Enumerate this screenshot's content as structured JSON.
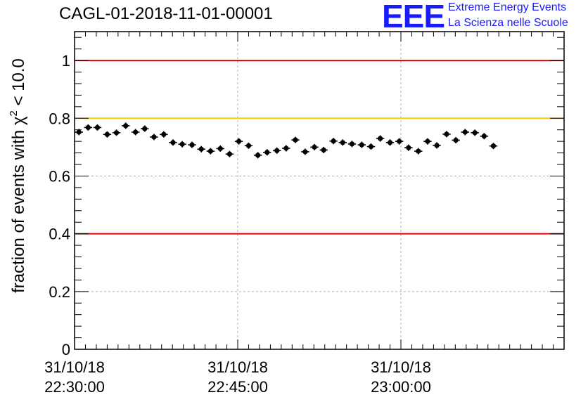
{
  "title": "CAGL-01-2018-11-01-00001",
  "logo": {
    "mark": "EEE",
    "line1": "Extreme Energy Events",
    "line2": "La Scienza nelle Scuole",
    "color": "#1a1aff"
  },
  "chart_data": {
    "type": "scatter",
    "title": "CAGL-01-2018-11-01-00001",
    "ylabel": "fraction of events with χ² < 10.0",
    "ylabel_parts": {
      "prefix": "fraction of events with ",
      "symbol": "χ",
      "superscript": "2",
      "suffix": " < 10.0"
    },
    "xlabel": "",
    "ylim": [
      0,
      1.1
    ],
    "xlim_minutes": [
      0,
      45
    ],
    "x_axis_start": "31/10/18 22:30:00",
    "x_ticks": [
      {
        "minute": 0,
        "date": "31/10/18",
        "time": "22:30:00"
      },
      {
        "minute": 15,
        "date": "31/10/18",
        "time": "22:45:00"
      },
      {
        "minute": 30,
        "date": "31/10/18",
        "time": "23:00:00"
      }
    ],
    "y_ticks": [
      {
        "value": 0,
        "label": "0"
      },
      {
        "value": 0.2,
        "label": "0.2"
      },
      {
        "value": 0.4,
        "label": "0.4"
      },
      {
        "value": 0.6,
        "label": "0.6"
      },
      {
        "value": 0.8,
        "label": "0.8"
      },
      {
        "value": 1,
        "label": "1"
      }
    ],
    "grid": true,
    "reference_lines": [
      {
        "y": 1.0,
        "color": "#e00000"
      },
      {
        "y": 0.8,
        "color": "#ffc800"
      },
      {
        "y": 0.4,
        "color": "#e00000"
      }
    ],
    "x_half_width_minutes": 0.37,
    "y_error": 0.011,
    "series": [
      {
        "marker_color": "#000000",
        "points": [
          {
            "x": 0.4,
            "y": 0.752
          },
          {
            "x": 1.25,
            "y": 0.768
          },
          {
            "x": 2.1,
            "y": 0.768
          },
          {
            "x": 3.0,
            "y": 0.744
          },
          {
            "x": 3.85,
            "y": 0.75
          },
          {
            "x": 4.7,
            "y": 0.774
          },
          {
            "x": 5.6,
            "y": 0.752
          },
          {
            "x": 6.45,
            "y": 0.764
          },
          {
            "x": 7.3,
            "y": 0.735
          },
          {
            "x": 8.2,
            "y": 0.744
          },
          {
            "x": 9.05,
            "y": 0.716
          },
          {
            "x": 9.9,
            "y": 0.71
          },
          {
            "x": 10.8,
            "y": 0.708
          },
          {
            "x": 11.65,
            "y": 0.693
          },
          {
            "x": 12.5,
            "y": 0.686
          },
          {
            "x": 13.4,
            "y": 0.695
          },
          {
            "x": 14.25,
            "y": 0.676
          },
          {
            "x": 15.1,
            "y": 0.72
          },
          {
            "x": 16.0,
            "y": 0.705
          },
          {
            "x": 16.85,
            "y": 0.672
          },
          {
            "x": 17.7,
            "y": 0.682
          },
          {
            "x": 18.6,
            "y": 0.688
          },
          {
            "x": 19.45,
            "y": 0.696
          },
          {
            "x": 20.3,
            "y": 0.725
          },
          {
            "x": 21.2,
            "y": 0.684
          },
          {
            "x": 22.05,
            "y": 0.7
          },
          {
            "x": 22.9,
            "y": 0.69
          },
          {
            "x": 23.8,
            "y": 0.721
          },
          {
            "x": 24.65,
            "y": 0.716
          },
          {
            "x": 25.5,
            "y": 0.711
          },
          {
            "x": 26.4,
            "y": 0.708
          },
          {
            "x": 27.25,
            "y": 0.702
          },
          {
            "x": 28.1,
            "y": 0.73
          },
          {
            "x": 29.0,
            "y": 0.716
          },
          {
            "x": 29.85,
            "y": 0.72
          },
          {
            "x": 30.7,
            "y": 0.698
          },
          {
            "x": 31.6,
            "y": 0.686
          },
          {
            "x": 32.45,
            "y": 0.72
          },
          {
            "x": 33.3,
            "y": 0.706
          },
          {
            "x": 34.2,
            "y": 0.745
          },
          {
            "x": 35.05,
            "y": 0.724
          },
          {
            "x": 35.9,
            "y": 0.752
          },
          {
            "x": 36.8,
            "y": 0.75
          },
          {
            "x": 37.65,
            "y": 0.738
          },
          {
            "x": 38.5,
            "y": 0.704
          }
        ]
      }
    ]
  }
}
